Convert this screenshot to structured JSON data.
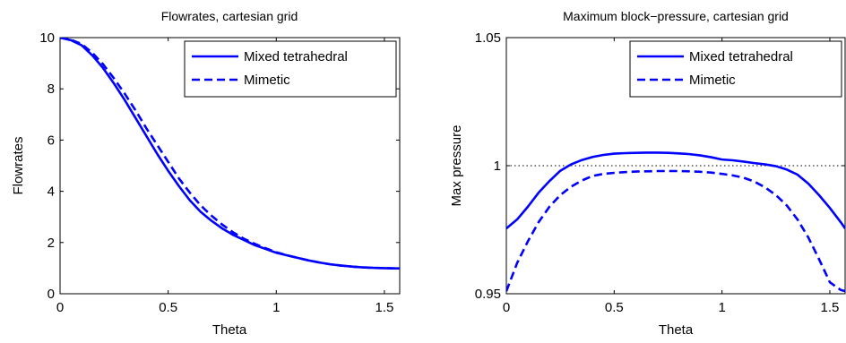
{
  "chart_data": [
    {
      "type": "line",
      "title": "Flowrates, cartesian grid",
      "xlabel": "Theta",
      "ylabel": "Flowrates",
      "xlim": [
        0,
        1.5708
      ],
      "ylim": [
        0,
        10
      ],
      "xticks": [
        0,
        0.5,
        1,
        1.5
      ],
      "xtick_labels": [
        "0",
        "0.5",
        "1",
        "1.5"
      ],
      "yticks": [
        0,
        2,
        4,
        6,
        8,
        10
      ],
      "ytick_labels": [
        "0",
        "2",
        "4",
        "6",
        "8",
        "10"
      ],
      "legend_position": "top-right",
      "color": "#0000ff",
      "reference_line": null,
      "series": [
        {
          "name": "Mixed tetrahedral",
          "style": "solid",
          "x": [
            0,
            0.05,
            0.1,
            0.15,
            0.2,
            0.25,
            0.3,
            0.35,
            0.4,
            0.45,
            0.5,
            0.55,
            0.6,
            0.65,
            0.7,
            0.75,
            0.8,
            0.85,
            0.9,
            0.95,
            1.0,
            1.05,
            1.1,
            1.15,
            1.2,
            1.25,
            1.3,
            1.35,
            1.4,
            1.45,
            1.5,
            1.55,
            1.5708
          ],
          "y": [
            10,
            9.9,
            9.7,
            9.3,
            8.8,
            8.2,
            7.55,
            6.85,
            6.15,
            5.45,
            4.8,
            4.2,
            3.65,
            3.2,
            2.85,
            2.55,
            2.3,
            2.1,
            1.9,
            1.75,
            1.6,
            1.5,
            1.4,
            1.3,
            1.22,
            1.15,
            1.1,
            1.06,
            1.03,
            1.01,
            1.0,
            0.99,
            0.99
          ]
        },
        {
          "name": "Mimetic",
          "style": "dashed",
          "x": [
            0,
            0.05,
            0.1,
            0.15,
            0.2,
            0.25,
            0.3,
            0.35,
            0.4,
            0.45,
            0.5,
            0.55,
            0.6,
            0.65,
            0.7,
            0.75,
            0.8,
            0.85,
            0.9,
            0.95,
            1.0,
            1.05,
            1.1,
            1.15,
            1.2,
            1.25,
            1.3,
            1.35,
            1.4,
            1.45,
            1.5,
            1.55,
            1.5708
          ],
          "y": [
            10,
            9.92,
            9.75,
            9.4,
            8.95,
            8.4,
            7.8,
            7.15,
            6.45,
            5.8,
            5.15,
            4.5,
            3.95,
            3.45,
            3.05,
            2.7,
            2.4,
            2.15,
            1.95,
            1.78,
            1.62,
            1.5,
            1.4,
            1.3,
            1.22,
            1.15,
            1.1,
            1.06,
            1.03,
            1.01,
            1.0,
            0.99,
            0.99
          ]
        }
      ]
    },
    {
      "type": "line",
      "title": "Maximum block−pressure, cartesian grid",
      "xlabel": "Theta",
      "ylabel": "Max pressure",
      "xlim": [
        0,
        1.5708
      ],
      "ylim": [
        0.95,
        1.05
      ],
      "xticks": [
        0,
        0.5,
        1,
        1.5
      ],
      "xtick_labels": [
        "0",
        "0.5",
        "1",
        "1.5"
      ],
      "yticks": [
        0.95,
        1,
        1.05
      ],
      "ytick_labels": [
        "0.95",
        "1",
        "1.05"
      ],
      "legend_position": "top-right",
      "color": "#0000ff",
      "reference_line": {
        "y": 1,
        "style": "dotted",
        "color": "#000000"
      },
      "series": [
        {
          "name": "Mixed tetrahedral",
          "style": "solid",
          "x": [
            0,
            0.05,
            0.1,
            0.15,
            0.2,
            0.25,
            0.3,
            0.35,
            0.4,
            0.45,
            0.5,
            0.55,
            0.6,
            0.65,
            0.7,
            0.75,
            0.8,
            0.85,
            0.9,
            0.95,
            1.0,
            1.05,
            1.1,
            1.15,
            1.2,
            1.25,
            1.3,
            1.35,
            1.4,
            1.45,
            1.5,
            1.55,
            1.5708
          ],
          "y": [
            0.9755,
            0.979,
            0.984,
            0.9895,
            0.994,
            0.998,
            1.0005,
            1.0022,
            1.0034,
            1.0042,
            1.0047,
            1.0049,
            1.005,
            1.0051,
            1.0051,
            1.005,
            1.0048,
            1.0045,
            1.004,
            1.0033,
            1.0024,
            1.0021,
            1.0016,
            1.001,
            1.0005,
            0.9998,
            0.9985,
            0.9965,
            0.993,
            0.9885,
            0.9835,
            0.978,
            0.9755
          ]
        },
        {
          "name": "Mimetic",
          "style": "dashed",
          "x": [
            0,
            0.05,
            0.1,
            0.15,
            0.2,
            0.25,
            0.3,
            0.35,
            0.4,
            0.45,
            0.5,
            0.55,
            0.6,
            0.65,
            0.7,
            0.75,
            0.8,
            0.85,
            0.9,
            0.95,
            1.0,
            1.05,
            1.1,
            1.15,
            1.2,
            1.25,
            1.3,
            1.35,
            1.4,
            1.45,
            1.5,
            1.55,
            1.5708
          ],
          "y": [
            0.951,
            0.962,
            0.9705,
            0.978,
            0.984,
            0.9885,
            0.9918,
            0.9942,
            0.996,
            0.9968,
            0.9972,
            0.9975,
            0.9977,
            0.9978,
            0.9979,
            0.9979,
            0.9979,
            0.9978,
            0.9976,
            0.9973,
            0.9968,
            0.9962,
            0.9953,
            0.9938,
            0.9915,
            0.9885,
            0.9845,
            0.979,
            0.972,
            0.9635,
            0.9545,
            0.9515,
            0.951
          ]
        }
      ]
    }
  ]
}
